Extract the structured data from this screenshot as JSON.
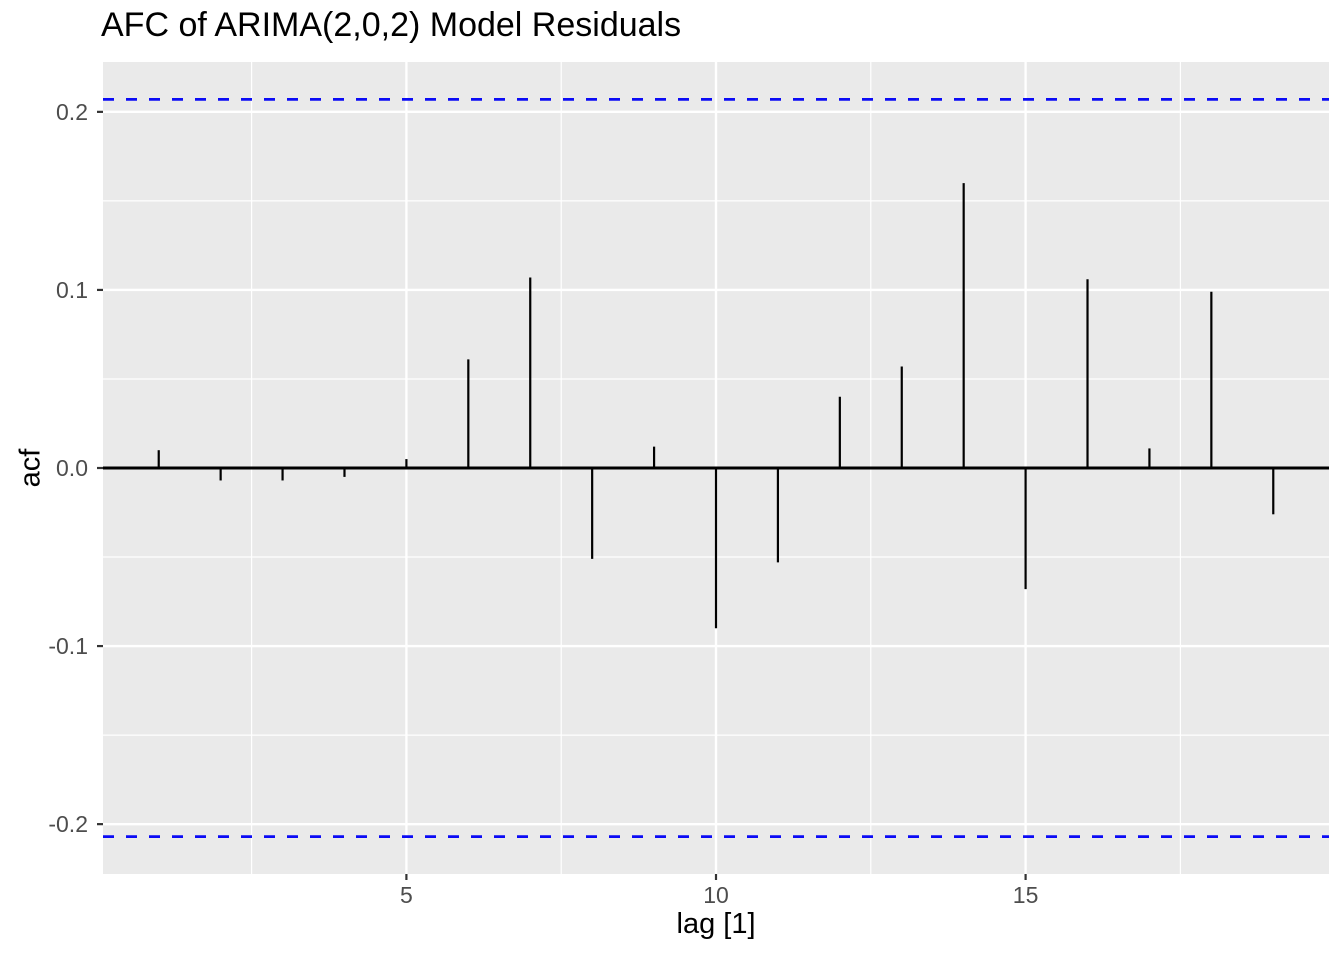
{
  "chart_data": {
    "type": "bar",
    "subtype": "acf-lollipop-segments",
    "title": "AFC of ARIMA(2,0,2) Model Residuals",
    "xlabel": "lag [1]",
    "ylabel": "acf",
    "x": [
      1,
      2,
      3,
      4,
      5,
      6,
      7,
      8,
      9,
      10,
      11,
      12,
      13,
      14,
      15,
      16,
      17,
      18,
      19
    ],
    "values": [
      0.01,
      -0.007,
      -0.007,
      -0.005,
      0.005,
      0.061,
      0.107,
      -0.051,
      0.012,
      -0.09,
      -0.053,
      0.04,
      0.057,
      0.16,
      -0.068,
      0.106,
      0.011,
      0.099,
      -0.026
    ],
    "confidence_bounds": {
      "upper": 0.207,
      "lower": -0.207,
      "style": "dashed"
    },
    "xlim": [
      0.1,
      19.9
    ],
    "ylim": [
      -0.228,
      0.228
    ],
    "x_ticks": {
      "values": [
        5,
        10,
        15
      ],
      "labels": [
        "5",
        "10",
        "15"
      ],
      "minor": [
        2.5,
        7.5,
        12.5,
        17.5
      ]
    },
    "y_ticks": {
      "values": [
        0.2,
        0.1,
        0.0,
        -0.1,
        -0.2
      ],
      "labels": [
        "0.2",
        "0.1",
        "0.0",
        "-0.1",
        "-0.2"
      ],
      "minor": [
        0.15,
        0.05,
        -0.05,
        -0.15
      ]
    },
    "grid": true,
    "legend_position": "none",
    "colors": {
      "background": "#FFFFFF",
      "panel_background": "#EAEAEA",
      "gridline": "#FFFFFF",
      "segment": "#000000",
      "zero_line": "#000000",
      "confidence_line": "#0B0BF5",
      "tick_mark": "#333333",
      "tick_label": "#4D4D4D",
      "axis_title": "#000000",
      "title": "#000000"
    }
  }
}
